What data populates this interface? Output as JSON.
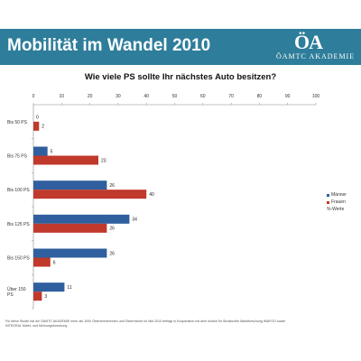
{
  "header": {
    "title": "Mobilität im Wandel 2010",
    "logo_mark": "ÖA",
    "logo_text": "ÖAMTC AKADEMIE"
  },
  "chart_data": {
    "type": "bar",
    "orientation": "horizontal",
    "title": "Wie viele PS sollte Ihr nächstes Auto besitzen?",
    "categories": [
      "Bis 50 PS",
      "Bis 75 PS",
      "Bis 100 PS",
      "Bis 125 PS",
      "Bis 150 PS",
      "Über 150 PS"
    ],
    "series": [
      {
        "name": "Männer",
        "color": "#2f5f9e",
        "values": [
          0,
          5,
          26,
          34,
          26,
          11
        ]
      },
      {
        "name": "Frauen",
        "color": "#c0392b",
        "values": [
          2,
          23,
          40,
          26,
          6,
          3
        ]
      }
    ],
    "xlim": [
      0,
      100
    ],
    "xticks": [
      0,
      10,
      20,
      30,
      40,
      50,
      60,
      70,
      80,
      90,
      100
    ],
    "legend_position": "right",
    "legend_extra": "%-Werte",
    "grid": false
  },
  "footnote": "Für diese Studie hat die ÖAMTC AKADEMIE mehr als 1000 Österreicherinnen und Österreicher im Mai 2010 befragt in Kooperation mit dem Institut für Strukturelle Marktforschung IMAFOO sowie INTEGRAL Markt- und Meinungsforschung"
}
